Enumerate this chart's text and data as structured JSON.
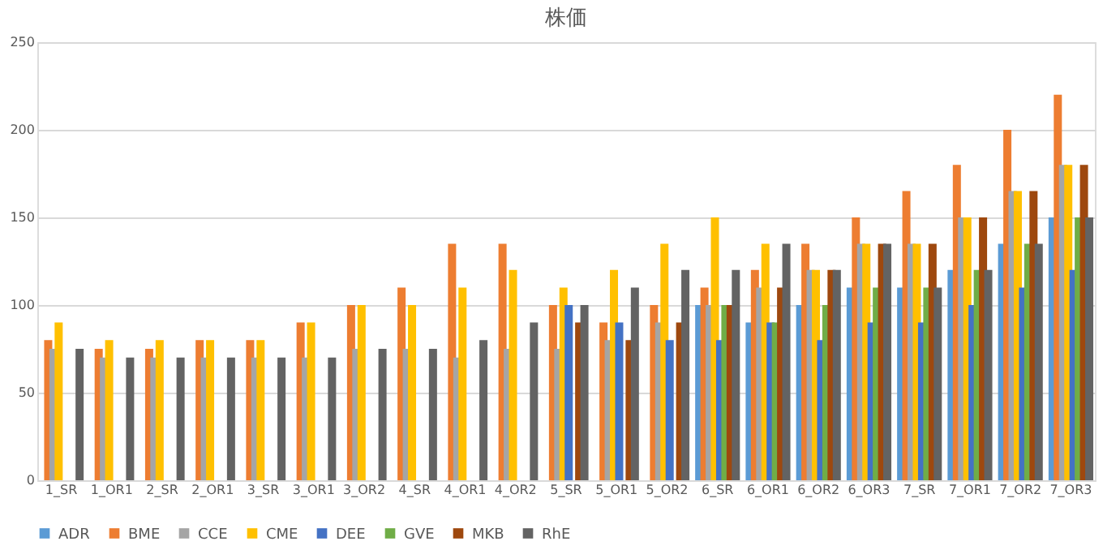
{
  "chart_data": {
    "type": "bar",
    "title": "株価",
    "categories": [
      "1_SR",
      "1_OR1",
      "2_SR",
      "2_OR1",
      "3_SR",
      "3_OR1",
      "3_OR2",
      "4_SR",
      "4_OR1",
      "4_OR2",
      "5_SR",
      "5_OR1",
      "5_OR2",
      "6_SR",
      "6_OR1",
      "6_OR2",
      "6_OR3",
      "7_SR",
      "7_OR1",
      "7_OR2",
      "7_OR3"
    ],
    "series": [
      {
        "name": "ADR",
        "color": "#5b9bd5",
        "values": [
          null,
          null,
          null,
          null,
          null,
          null,
          null,
          null,
          null,
          null,
          null,
          null,
          null,
          100,
          90,
          100,
          110,
          110,
          120,
          135,
          150
        ]
      },
      {
        "name": "BME",
        "color": "#ed7d31",
        "values": [
          80,
          75,
          75,
          80,
          80,
          90,
          100,
          110,
          135,
          135,
          100,
          90,
          100,
          110,
          120,
          135,
          150,
          165,
          180,
          200,
          220
        ]
      },
      {
        "name": "CCE",
        "color": "#a5a5a5",
        "values": [
          75,
          70,
          70,
          70,
          70,
          70,
          75,
          75,
          70,
          75,
          75,
          80,
          90,
          100,
          110,
          120,
          135,
          135,
          150,
          165,
          180
        ]
      },
      {
        "name": "CME",
        "color": "#ffc000",
        "values": [
          90,
          80,
          80,
          80,
          80,
          90,
          100,
          100,
          110,
          120,
          110,
          120,
          135,
          150,
          135,
          120,
          135,
          135,
          150,
          165,
          180
        ]
      },
      {
        "name": "DEE",
        "color": "#4472c4",
        "values": [
          null,
          null,
          null,
          null,
          null,
          null,
          null,
          null,
          null,
          null,
          100,
          90,
          80,
          80,
          90,
          80,
          90,
          90,
          100,
          110,
          120
        ]
      },
      {
        "name": "GVE",
        "color": "#70ad47",
        "values": [
          null,
          null,
          null,
          null,
          null,
          null,
          null,
          null,
          null,
          null,
          null,
          null,
          null,
          100,
          90,
          100,
          110,
          110,
          120,
          135,
          150
        ]
      },
      {
        "name": "MKB",
        "color": "#9e480e",
        "values": [
          null,
          null,
          null,
          null,
          null,
          null,
          null,
          null,
          null,
          null,
          90,
          80,
          90,
          100,
          110,
          120,
          135,
          135,
          150,
          165,
          180
        ]
      },
      {
        "name": "RhE",
        "color": "#636363",
        "values": [
          75,
          70,
          70,
          70,
          70,
          70,
          75,
          75,
          80,
          90,
          100,
          110,
          120,
          120,
          135,
          120,
          135,
          110,
          120,
          135,
          150
        ]
      }
    ],
    "ylim": [
      0,
      250
    ],
    "yticks": [
      0,
      50,
      100,
      150,
      200,
      250
    ],
    "grid": "y",
    "legend": "bottom"
  }
}
